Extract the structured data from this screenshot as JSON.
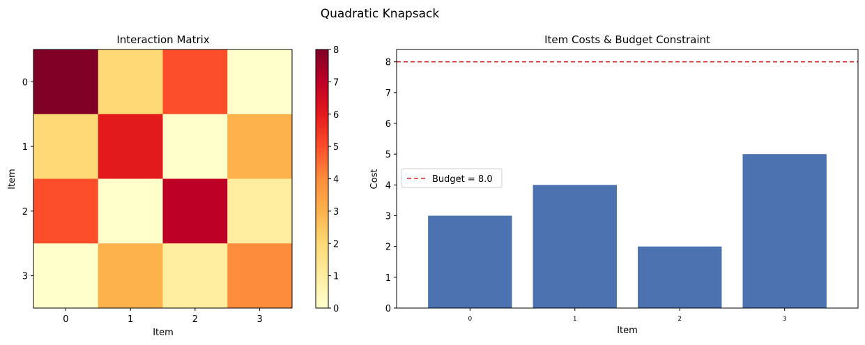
{
  "figure": {
    "suptitle": "Quadratic Knapsack"
  },
  "chart_data": [
    {
      "type": "heatmap",
      "title": "Interaction Matrix",
      "xlabel": "Item",
      "ylabel": "Item",
      "x_categories": [
        "0",
        "1",
        "2",
        "3"
      ],
      "y_categories": [
        "0",
        "1",
        "2",
        "3"
      ],
      "values": [
        [
          8,
          2,
          5,
          0
        ],
        [
          2,
          6,
          0,
          3
        ],
        [
          5,
          0,
          7,
          1
        ],
        [
          0,
          3,
          1,
          4
        ]
      ],
      "colormap": "YlOrRd",
      "colorbar": {
        "range": [
          0,
          8
        ],
        "ticks": [
          "0",
          "1",
          "2",
          "3",
          "4",
          "5",
          "6",
          "7",
          "8"
        ]
      }
    },
    {
      "type": "bar",
      "title": "Item Costs & Budget Constraint",
      "xlabel": "Item",
      "ylabel": "Cost",
      "categories": [
        "0",
        "1",
        "2",
        "3"
      ],
      "values": [
        3,
        4,
        2,
        5
      ],
      "ylim": [
        0,
        8.4
      ],
      "yticks": [
        "0",
        "1",
        "2",
        "3",
        "4",
        "5",
        "6",
        "7",
        "8"
      ],
      "bar_color": "#4c72b0",
      "budget_line": {
        "value": 8.0,
        "label": "Budget = 8.0",
        "color": "#d62728",
        "style": "dashed"
      },
      "legend": {
        "placement": "center-left"
      }
    }
  ]
}
